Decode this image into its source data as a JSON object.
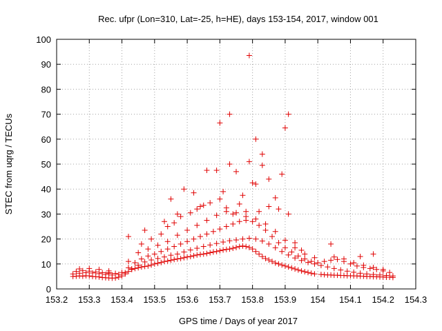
{
  "chart_data": {
    "type": "scatter",
    "title": "Rec. ufpr (Lon=310, Lat=-25, h=HE), days 153-154, 2017, window 001",
    "xlabel": "GPS time / Days of year 2017",
    "ylabel": "STEC from uqrg / TECUs",
    "xlim": [
      153.2,
      154.3
    ],
    "ylim": [
      0,
      100
    ],
    "xticks": [
      153.2,
      153.3,
      153.4,
      153.5,
      153.6,
      153.7,
      153.8,
      153.9,
      154.0,
      154.1,
      154.2,
      154.3
    ],
    "xtick_labels": [
      "153.2",
      "153.3",
      "153.4",
      "153.5",
      "153.6",
      "153.7",
      "153.8",
      "153.9",
      "154",
      "154.1",
      "154.2",
      "154.3"
    ],
    "yticks": [
      0,
      10,
      20,
      30,
      40,
      50,
      60,
      70,
      80,
      90,
      100
    ],
    "ytick_labels": [
      "0",
      "10",
      "20",
      "30",
      "40",
      "50",
      "60",
      "70",
      "80",
      "90",
      "100"
    ],
    "grid": true,
    "marker": "+",
    "color": "#e00000",
    "series": [
      {
        "x": [
          153.25,
          153.26,
          153.27,
          153.28,
          153.29,
          153.3,
          153.31,
          153.32,
          153.33,
          153.34,
          153.35,
          153.36,
          153.37,
          153.38,
          153.39,
          153.4,
          153.41,
          153.42,
          153.43,
          153.44,
          153.45,
          153.46,
          153.47,
          153.48,
          153.49,
          153.5,
          153.51,
          153.52,
          153.53,
          153.54,
          153.55,
          153.56,
          153.57,
          153.58,
          153.59,
          153.6,
          153.61,
          153.62,
          153.63,
          153.64,
          153.65,
          153.66,
          153.67,
          153.68,
          153.69,
          153.7,
          153.71,
          153.72,
          153.73,
          153.74,
          153.75,
          153.76,
          153.77,
          153.78,
          153.79,
          153.8,
          153.81,
          153.82,
          153.83,
          153.84,
          153.85,
          153.86,
          153.87,
          153.88,
          153.89,
          153.9,
          153.91,
          153.92,
          153.93,
          153.94,
          153.95,
          153.96,
          153.97,
          153.98,
          153.99,
          154.01,
          154.02,
          154.03,
          154.04,
          154.05,
          154.06,
          154.07,
          154.08,
          154.09,
          154.1,
          154.11,
          154.12,
          154.13,
          154.14,
          154.15,
          154.16,
          154.17,
          154.18,
          154.19,
          154.2,
          154.21,
          154.22,
          154.23
        ],
        "y": [
          5.0,
          5.1,
          5.2,
          5.1,
          5.3,
          5.2,
          5.0,
          4.9,
          4.8,
          4.6,
          4.5,
          4.4,
          4.3,
          4.4,
          4.7,
          5.2,
          6.0,
          7.0,
          7.8,
          8.2,
          8.5,
          8.8,
          9.0,
          9.2,
          9.6,
          10.0,
          10.3,
          10.6,
          11.0,
          11.2,
          11.5,
          11.8,
          12.0,
          12.2,
          12.5,
          12.8,
          13.0,
          13.3,
          13.6,
          13.8,
          14.0,
          14.2,
          14.5,
          14.8,
          15.0,
          15.3,
          15.6,
          15.8,
          16.0,
          16.3,
          16.6,
          17.0,
          17.2,
          17.0,
          16.6,
          16.0,
          15.0,
          14.0,
          13.0,
          12.2,
          11.6,
          11.0,
          10.4,
          10.0,
          9.6,
          9.2,
          8.8,
          8.4,
          8.0,
          7.6,
          7.2,
          6.9,
          6.6,
          6.3,
          6.0,
          5.8,
          5.7,
          5.6,
          5.6,
          5.5,
          5.5,
          5.4,
          5.4,
          5.3,
          5.3,
          5.2,
          5.2,
          5.1,
          5.1,
          5.0,
          5.0,
          4.9,
          4.9,
          4.8,
          4.8,
          4.7,
          4.7,
          4.6
        ]
      },
      {
        "x": [
          153.25,
          153.27,
          153.29,
          153.31,
          153.33,
          153.35,
          153.37,
          153.39,
          153.41,
          153.43,
          153.45,
          153.47,
          153.49,
          153.51,
          153.53,
          153.55,
          153.57,
          153.59,
          153.61,
          153.63,
          153.65,
          153.67,
          153.69,
          153.71,
          153.73,
          153.75,
          153.77,
          153.79,
          153.81,
          153.83,
          153.85,
          153.87,
          153.89,
          153.91,
          153.93,
          153.95,
          153.97,
          153.99,
          154.01,
          154.03,
          154.05,
          154.07,
          154.09,
          154.11,
          154.13,
          154.15,
          154.17,
          154.19,
          154.21,
          154.23
        ],
        "y": [
          6.0,
          6.3,
          6.5,
          6.4,
          6.1,
          5.8,
          5.6,
          5.8,
          6.5,
          8.0,
          9.5,
          10.8,
          11.6,
          12.2,
          12.8,
          13.5,
          14.0,
          14.8,
          15.6,
          16.3,
          17.0,
          17.6,
          18.2,
          18.8,
          19.3,
          19.6,
          20.0,
          20.3,
          20.0,
          19.2,
          18.0,
          16.5,
          15.0,
          13.6,
          12.4,
          11.4,
          10.6,
          10.0,
          9.4,
          8.8,
          8.2,
          7.6,
          7.1,
          6.7,
          6.3,
          6.0,
          5.8,
          5.6,
          5.4,
          5.2
        ]
      },
      {
        "x": [
          153.26,
          153.28,
          153.3,
          153.32,
          153.34,
          153.36,
          153.38,
          153.4,
          153.42,
          153.44,
          153.46,
          153.48,
          153.5,
          153.52,
          153.54,
          153.56,
          153.58,
          153.6,
          153.62,
          153.64,
          153.66,
          153.68,
          153.7,
          153.72,
          153.74,
          153.76,
          153.78,
          153.8,
          153.82,
          153.84,
          153.86,
          153.88,
          153.9,
          153.92,
          153.94,
          153.96,
          153.98,
          154.0,
          154.02,
          154.04,
          154.06,
          154.08,
          154.1,
          154.12,
          154.14,
          154.16,
          154.18,
          154.2,
          154.22
        ],
        "y": [
          7.0,
          7.3,
          7.1,
          6.8,
          6.5,
          6.3,
          6.2,
          6.6,
          8.5,
          10.5,
          12.0,
          13.2,
          14.0,
          15.0,
          16.0,
          17.0,
          18.0,
          19.0,
          20.0,
          21.0,
          22.0,
          23.0,
          24.0,
          25.0,
          26.0,
          27.0,
          27.5,
          27.0,
          25.5,
          23.5,
          21.0,
          18.5,
          16.5,
          14.8,
          13.2,
          12.0,
          11.0,
          10.5,
          11.0,
          11.5,
          11.8,
          11.0,
          10.0,
          9.2,
          8.6,
          8.2,
          7.8,
          7.2,
          6.6
        ]
      },
      {
        "x": [
          153.27,
          153.3,
          153.33,
          153.36,
          153.42,
          153.45,
          153.48,
          153.51,
          153.54,
          153.57,
          153.6,
          153.63,
          153.66,
          153.69,
          153.72,
          153.75,
          153.78,
          153.81,
          153.84,
          153.87,
          153.9,
          153.93,
          153.96,
          153.99,
          154.05,
          154.08,
          154.11,
          154.14,
          154.17,
          154.2
        ],
        "y": [
          8.0,
          8.2,
          7.8,
          7.2,
          11.0,
          14.5,
          16.0,
          17.5,
          19.0,
          21.5,
          23.5,
          25.5,
          27.5,
          29.5,
          31.0,
          30.5,
          29.0,
          28.0,
          26.0,
          23.0,
          19.5,
          16.5,
          14.0,
          12.5,
          12.8,
          12.0,
          10.5,
          9.5,
          8.6,
          7.8
        ]
      },
      {
        "x": [
          153.46,
          153.49,
          153.52,
          153.54,
          153.56,
          153.58,
          153.61,
          153.63,
          153.65,
          153.67,
          153.7,
          153.72,
          153.74,
          153.76,
          153.78,
          153.82,
          153.85,
          153.88
        ],
        "y": [
          18.0,
          20.0,
          22.0,
          25.0,
          26.5,
          29.0,
          30.5,
          32.0,
          33.5,
          34.5,
          36.0,
          32.5,
          30.0,
          34.0,
          31.0,
          31.0,
          33.0,
          32.0
        ]
      },
      {
        "x": [
          153.36,
          153.42,
          153.47,
          153.53,
          153.55,
          153.57,
          153.59,
          153.62,
          153.64,
          153.66,
          153.69,
          153.71,
          153.73,
          153.75,
          153.77,
          153.79,
          153.8,
          153.81,
          153.83,
          153.85,
          153.87,
          153.89,
          153.91,
          153.93,
          153.95,
          154.04,
          154.13,
          154.17
        ],
        "y": [
          6.5,
          21.0,
          23.5,
          27.0,
          36.0,
          30.0,
          40.0,
          38.5,
          33.0,
          47.5,
          47.5,
          39.0,
          70.0,
          47.0,
          37.5,
          51.0,
          42.5,
          42.0,
          54.0,
          44.0,
          36.5,
          46.0,
          70.0,
          18.5,
          15.5,
          18.0,
          13.0,
          14.0
        ]
      },
      {
        "x": [
          153.7,
          153.73,
          153.79,
          153.81,
          153.83,
          153.9,
          153.91
        ],
        "y": [
          66.5,
          50.0,
          93.5,
          60.0,
          49.5,
          64.5,
          30.0
        ]
      }
    ]
  }
}
